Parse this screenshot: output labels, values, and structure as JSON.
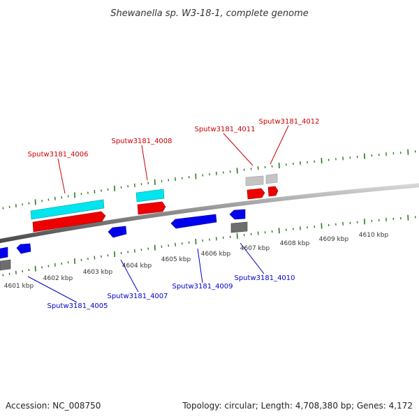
{
  "title": "Shewanella sp. W3-18-1, complete genome",
  "colors": {
    "axis": "#8a8a8a",
    "tick_green": "#2a7a1a",
    "cyan": "#00e5ee",
    "red": "#ee0000",
    "blue": "#0000ee",
    "gray_dark": "#6e6e6e",
    "gray_light": "#c4c4c4",
    "label_red": "#cc0000",
    "label_blue": "#0000cc"
  },
  "scale_labels": [
    "4601 kbp",
    "4602 kbp",
    "4603 kbp",
    "4604 kbp",
    "4605 kbp",
    "4606 kbp",
    "4607 kbp",
    "4608 kbp",
    "4609 kbp",
    "4610 kbp"
  ],
  "genes_top": [
    {
      "label": "Sputw3181_4006"
    },
    {
      "label": "Sputw3181_4008"
    },
    {
      "label": "Sputw3181_4011"
    },
    {
      "label": "Sputw3181_4012"
    }
  ],
  "genes_bottom": [
    {
      "label": "Sputw3181_4005"
    },
    {
      "label": "Sputw3181_4007"
    },
    {
      "label": "Sputw3181_4009"
    },
    {
      "label": "Sputw3181_4010"
    }
  ],
  "footer": {
    "accession": "Accession: NC_008750",
    "summary": "Topology: circular; Length: 4,708,380 bp; Genes: 4,172"
  }
}
